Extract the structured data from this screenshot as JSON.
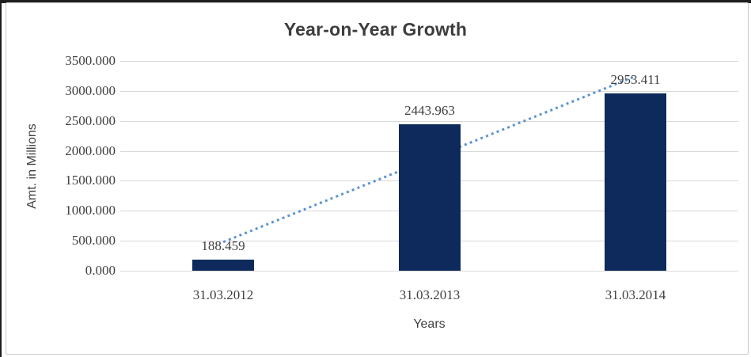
{
  "chart_data": {
    "type": "bar",
    "title": "Year-on-Year Growth",
    "categories": [
      "31.03.2012",
      "31.03.2013",
      "31.03.2014"
    ],
    "values": [
      188.459,
      2443.963,
      2953.411
    ],
    "data_labels": [
      "188.459",
      "2443.963",
      "2953.411"
    ],
    "xlabel": "Years",
    "ylabel": "Amt. in Millions",
    "ylim": [
      0,
      3500
    ],
    "ytick_interval": 500,
    "ytick_labels": [
      "3500.000",
      "3000.000",
      "2500.000",
      "2000.000",
      "1500.000",
      "1000.000",
      "500.000",
      "0.000"
    ],
    "grid": true,
    "legend": false,
    "trendline": {
      "type": "linear",
      "style": "dotted",
      "fitted_values": [
        479.468,
        1861.944,
        3244.42
      ]
    },
    "colors": {
      "bar": "#0e2a5c",
      "trendline": "#5b93d2",
      "gridline": "#d9d9d9",
      "text": "#404040",
      "title_text": "#3d3d3d"
    }
  }
}
